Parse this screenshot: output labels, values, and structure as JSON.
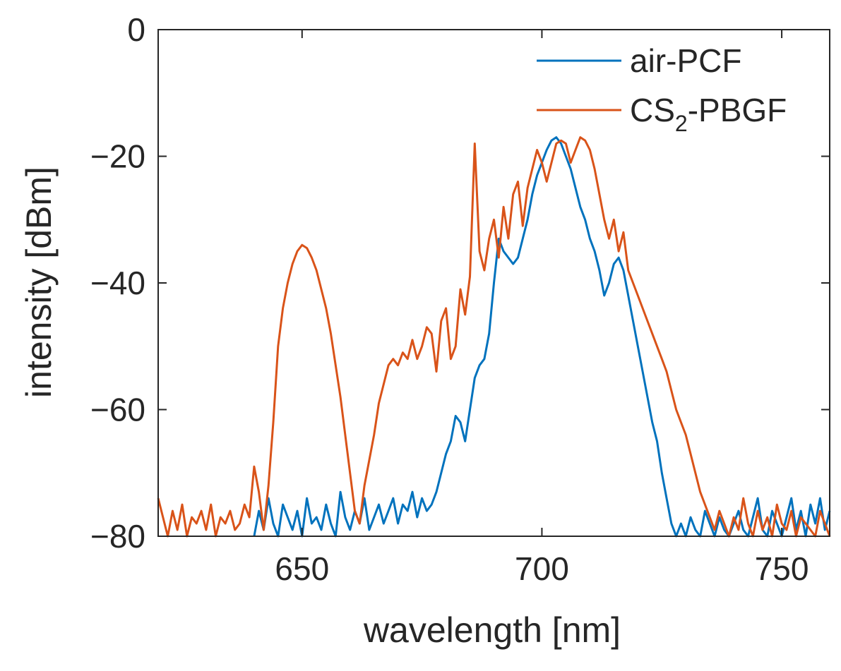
{
  "chart_data": {
    "type": "line",
    "xlabel": "wavelength [nm]",
    "ylabel": "intensity [dBm]",
    "xlim": [
      620,
      760
    ],
    "ylim": [
      -80,
      0
    ],
    "xticks": [
      650,
      700,
      750
    ],
    "yticks": [
      0,
      -20,
      -40,
      -60,
      -80
    ],
    "xtick_labels": [
      "650",
      "700",
      "750"
    ],
    "ytick_labels": [
      "0",
      "−20",
      "−40",
      "−60",
      "−80"
    ],
    "grid": false,
    "legend_position": "top-right",
    "series": [
      {
        "name": "air-PCF",
        "name_main": "air-PCF",
        "color": "#0072BD",
        "x": [
          640,
          641,
          642,
          643,
          644,
          645,
          646,
          647,
          648,
          649,
          650,
          651,
          652,
          653,
          654,
          655,
          656,
          657,
          658,
          659,
          660,
          661,
          662,
          663,
          664,
          665,
          666,
          667,
          668,
          669,
          670,
          671,
          672,
          673,
          674,
          675,
          676,
          677,
          678,
          679,
          680,
          681,
          682,
          683,
          684,
          685,
          686,
          687,
          688,
          689,
          690,
          691,
          692,
          693,
          694,
          695,
          696,
          697,
          698,
          699,
          700,
          701,
          702,
          703,
          704,
          705,
          706,
          707,
          708,
          709,
          710,
          711,
          712,
          713,
          714,
          715,
          716,
          717,
          718,
          719,
          720,
          721,
          722,
          723,
          724,
          725,
          726,
          727,
          728,
          729,
          730,
          731,
          732,
          733,
          734,
          735,
          736,
          737,
          738,
          739,
          740,
          741,
          742,
          743,
          744,
          745,
          746,
          747,
          748,
          749,
          750,
          751,
          752,
          753,
          754,
          755,
          756,
          757,
          758,
          759,
          760
        ],
        "y": [
          -80,
          -76,
          -79,
          -74,
          -78,
          -80,
          -75,
          -77,
          -79,
          -76,
          -80,
          -74,
          -78,
          -77,
          -79,
          -75,
          -78,
          -80,
          -73,
          -77,
          -79,
          -76,
          -78,
          -74,
          -79,
          -77,
          -75,
          -78,
          -76,
          -74,
          -78,
          -75,
          -76,
          -73,
          -77,
          -74,
          -76,
          -75,
          -73,
          -70,
          -67,
          -65,
          -61,
          -62,
          -65,
          -60,
          -55,
          -53,
          -52,
          -48,
          -40,
          -33,
          -35,
          -36,
          -37,
          -36,
          -33,
          -30,
          -26,
          -23,
          -21,
          -19,
          -17.5,
          -17,
          -18,
          -20,
          -22,
          -25,
          -28,
          -30,
          -33,
          -35,
          -38,
          -42,
          -40,
          -37,
          -36,
          -38,
          -42,
          -46,
          -50,
          -54,
          -58,
          -62,
          -65,
          -70,
          -74,
          -78,
          -80,
          -78,
          -80,
          -77,
          -79,
          -80,
          -76,
          -78,
          -80,
          -77,
          -79,
          -80,
          -78,
          -76,
          -79,
          -80,
          -77,
          -74,
          -79,
          -80,
          -76,
          -78,
          -80,
          -77,
          -74,
          -79,
          -76,
          -80,
          -75,
          -78,
          -74,
          -79,
          -76
        ]
      },
      {
        "name": "CS2-PBGF",
        "name_main": "CS",
        "name_sub": "2",
        "name_rest": "-PBGF",
        "color": "#D95319",
        "x": [
          620,
          621,
          622,
          623,
          624,
          625,
          626,
          627,
          628,
          629,
          630,
          631,
          632,
          633,
          634,
          635,
          636,
          637,
          638,
          639,
          640,
          641,
          642,
          643,
          644,
          645,
          646,
          647,
          648,
          649,
          650,
          651,
          652,
          653,
          654,
          655,
          656,
          657,
          658,
          659,
          660,
          661,
          662,
          663,
          664,
          665,
          666,
          667,
          668,
          669,
          670,
          671,
          672,
          673,
          674,
          675,
          676,
          677,
          678,
          679,
          680,
          681,
          682,
          683,
          684,
          685,
          686,
          687,
          688,
          689,
          690,
          691,
          692,
          693,
          694,
          695,
          696,
          697,
          698,
          699,
          700,
          701,
          702,
          703,
          704,
          705,
          706,
          707,
          708,
          709,
          710,
          711,
          712,
          713,
          714,
          715,
          716,
          717,
          718,
          719,
          720,
          721,
          722,
          723,
          724,
          725,
          726,
          727,
          728,
          729,
          730,
          731,
          732,
          733,
          734,
          735,
          736,
          737,
          738,
          739,
          740,
          741,
          742,
          743,
          744,
          745,
          746,
          747,
          748,
          749,
          750,
          751,
          752,
          753,
          754,
          755,
          756,
          757,
          758,
          759,
          760
        ],
        "y": [
          -74,
          -77,
          -80,
          -76,
          -79,
          -75,
          -80,
          -77,
          -78,
          -76,
          -79,
          -75,
          -80,
          -77,
          -78,
          -76,
          -79,
          -78,
          -75,
          -77,
          -69,
          -73,
          -79,
          -72,
          -62,
          -50,
          -44,
          -40,
          -37,
          -35,
          -34,
          -34.5,
          -36,
          -38,
          -41,
          -44,
          -48,
          -53,
          -58,
          -64,
          -70,
          -76,
          -78,
          -72,
          -68,
          -64,
          -59,
          -56,
          -53,
          -52,
          -53,
          -51,
          -52,
          -49,
          -52,
          -50,
          -47,
          -48,
          -54,
          -46,
          -44,
          -52,
          -50,
          -41,
          -45,
          -39,
          -18,
          -35,
          -38,
          -33,
          -30,
          -36,
          -28,
          -33,
          -26,
          -24,
          -31,
          -25,
          -22,
          -19,
          -21,
          -24,
          -21,
          -18,
          -17.5,
          -18,
          -21,
          -19,
          -17,
          -17.5,
          -19,
          -22,
          -26,
          -30,
          -33,
          -30,
          -35,
          -32,
          -38,
          -40,
          -42,
          -44,
          -46,
          -48,
          -50,
          -52,
          -54,
          -57,
          -60,
          -62,
          -64,
          -67,
          -70,
          -73,
          -75,
          -77,
          -79,
          -76,
          -78,
          -80,
          -77,
          -79,
          -74,
          -78,
          -80,
          -76,
          -79,
          -77,
          -80,
          -75,
          -78,
          -79,
          -76,
          -80,
          -77,
          -78,
          -79,
          -80,
          -76,
          -78,
          -80
        ]
      }
    ]
  }
}
